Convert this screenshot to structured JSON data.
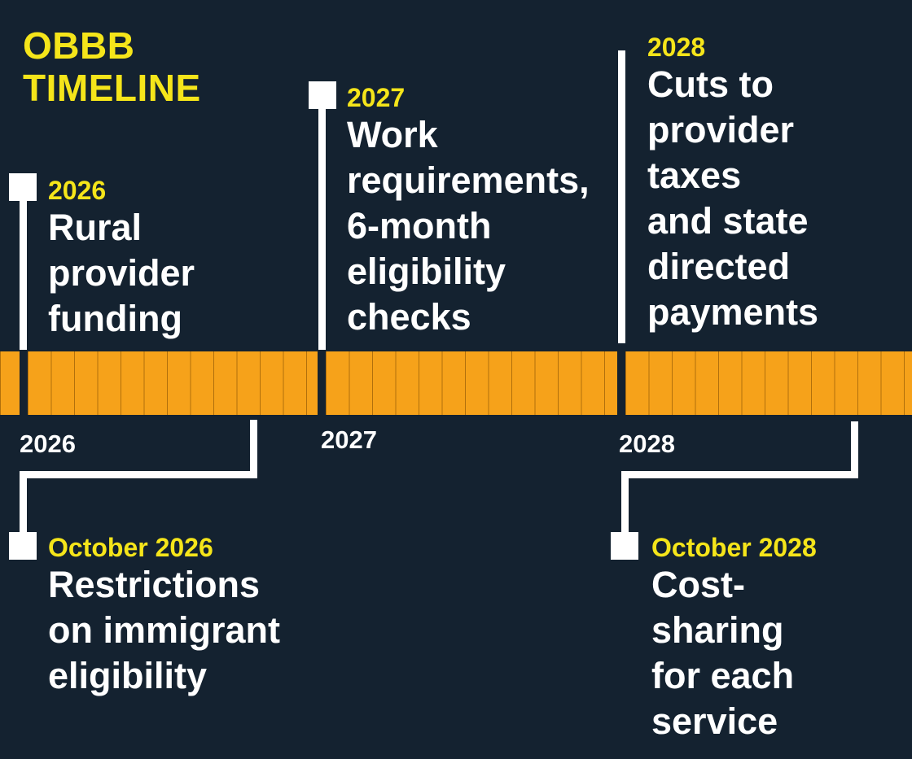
{
  "title": {
    "line1": "OBBB",
    "line2": "TIMELINE"
  },
  "events": [
    {
      "id": "2026",
      "date": "2026",
      "lines": [
        "Rural",
        "provider",
        "funding"
      ]
    },
    {
      "id": "2027",
      "date": "2027",
      "lines": [
        "Work",
        "requirements,",
        "6-month",
        "eligibility",
        "checks"
      ]
    },
    {
      "id": "2028",
      "date": "2028",
      "lines": [
        "Cuts to",
        "provider",
        "taxes",
        "and state",
        "directed",
        "payments"
      ]
    },
    {
      "id": "oct-2026",
      "date": "October 2026",
      "lines": [
        "Restrictions",
        "on immigrant",
        "eligibility"
      ]
    },
    {
      "id": "oct-2028",
      "date": "October 2028",
      "lines": [
        "Cost-",
        "sharing",
        "for each",
        "service"
      ]
    }
  ],
  "axis": {
    "years": [
      "2026",
      "2027",
      "2028"
    ]
  },
  "colors": {
    "background": "#142230",
    "accent_yellow": "#f5e51a",
    "timeline_orange": "#f6a21a",
    "text_white": "#ffffff"
  }
}
